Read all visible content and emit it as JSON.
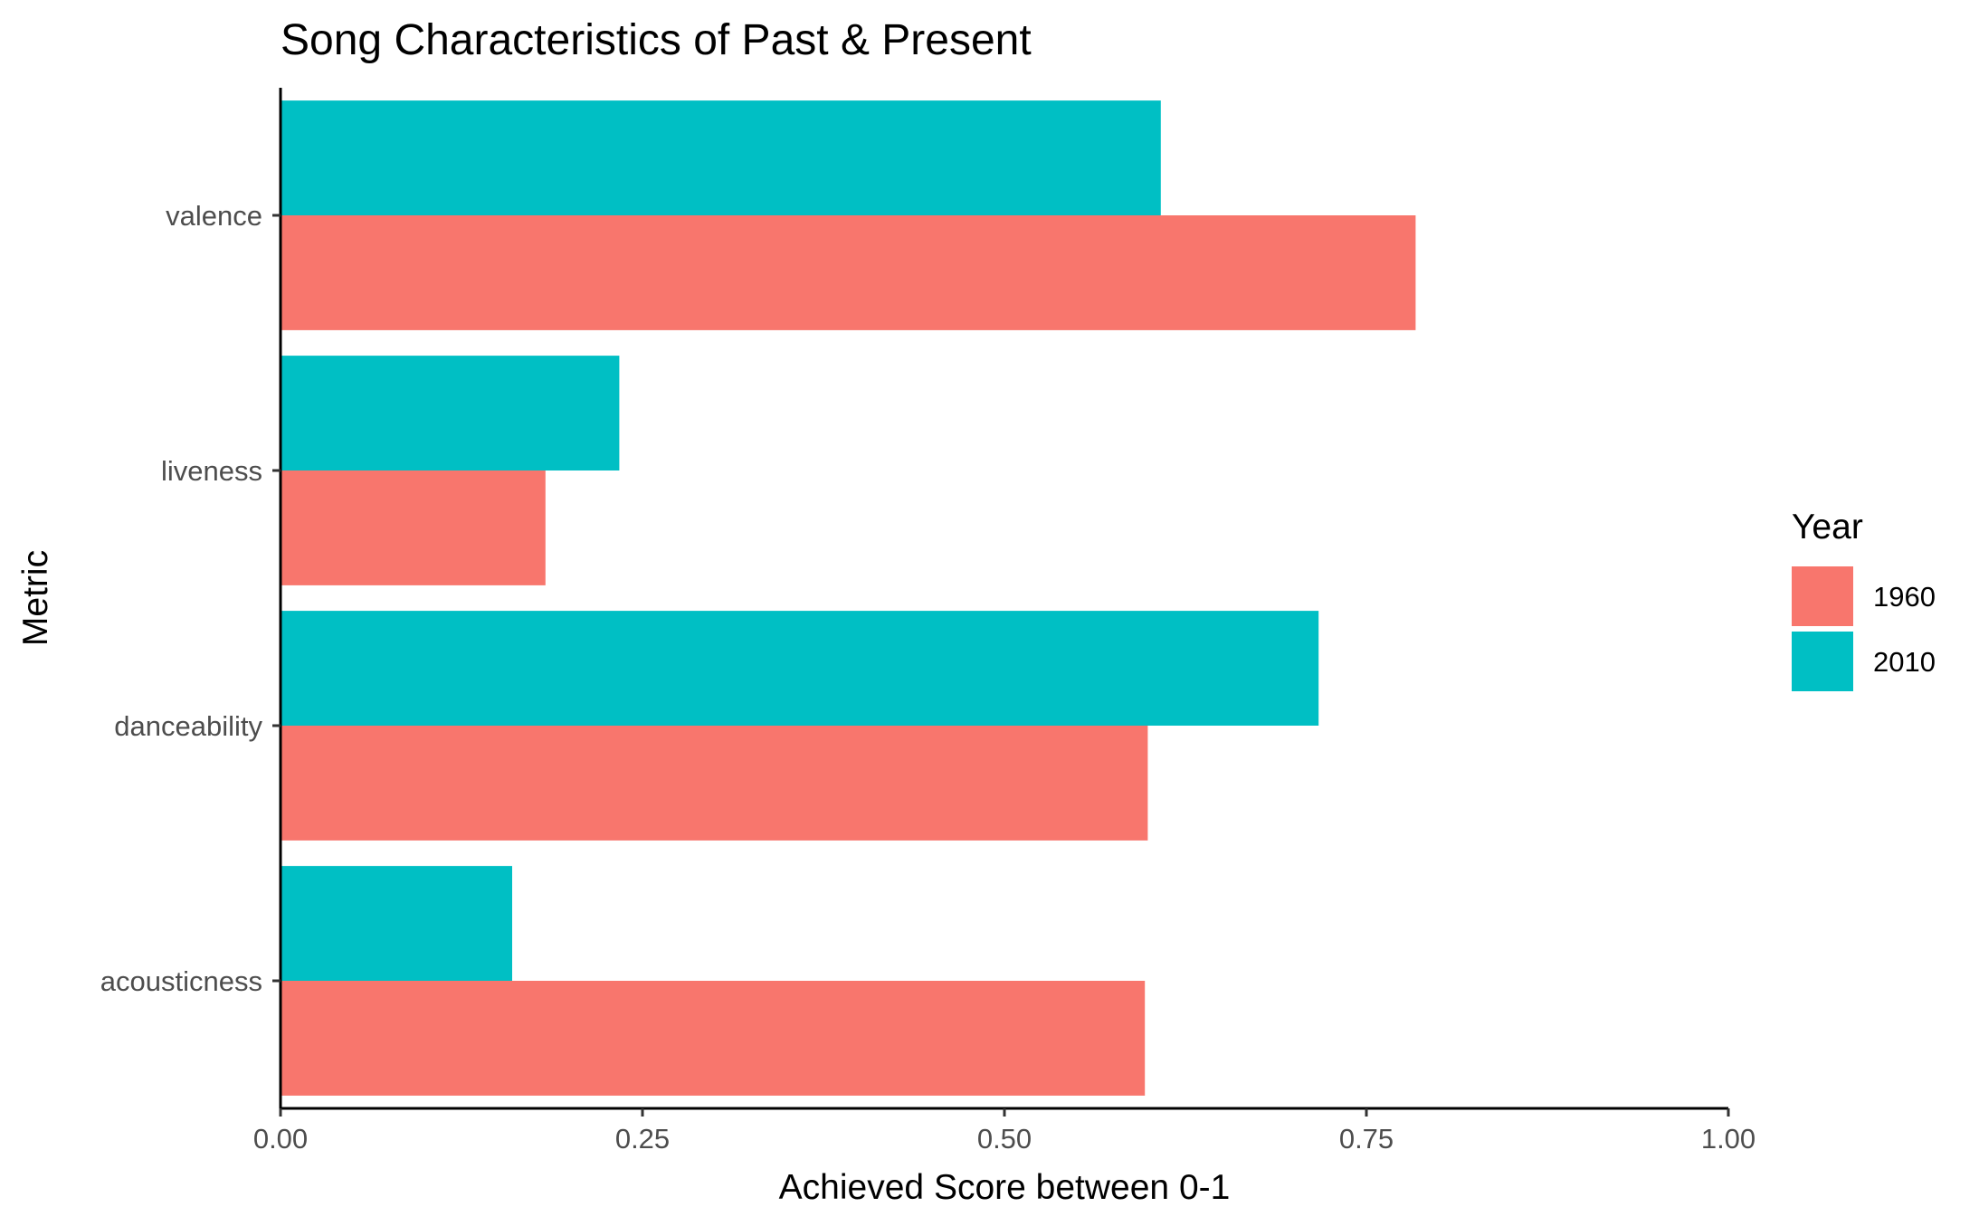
{
  "chart_data": {
    "type": "bar",
    "orientation": "horizontal",
    "title": "Song Characteristics of Past & Present",
    "xlabel": "Achieved Score between 0-1",
    "ylabel": "Metric",
    "categories": [
      "acousticness",
      "danceability",
      "liveness",
      "valence"
    ],
    "series": [
      {
        "name": "1960",
        "color": "#F8766D",
        "values": [
          0.597,
          0.599,
          0.183,
          0.784
        ]
      },
      {
        "name": "2010",
        "color": "#00BFC4",
        "values": [
          0.16,
          0.717,
          0.234,
          0.608
        ]
      }
    ],
    "xlim": [
      0,
      1
    ],
    "xticks": [
      0,
      0.25,
      0.5,
      0.75,
      1
    ],
    "xtick_labels": [
      "0.00",
      "0.25",
      "0.50",
      "0.75",
      "1.00"
    ],
    "legend": {
      "title": "Year",
      "placement": "right",
      "entries": [
        "1960",
        "2010"
      ]
    },
    "grid": false
  }
}
